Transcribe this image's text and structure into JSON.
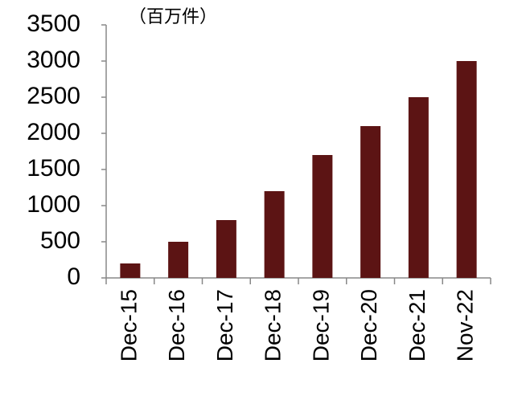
{
  "chart_data": {
    "type": "bar",
    "unit_label": "（百万件）",
    "categories": [
      "Dec-15",
      "Dec-16",
      "Dec-17",
      "Dec-18",
      "Dec-19",
      "Dec-20",
      "Dec-21",
      "Nov-22"
    ],
    "values": [
      200,
      500,
      800,
      1200,
      1700,
      2100,
      2500,
      3000
    ],
    "color": "#5c1414",
    "ylim": [
      0,
      3500
    ],
    "yticks": [
      0,
      500,
      1000,
      1500,
      2000,
      2500,
      3000,
      3500
    ],
    "grid": false
  }
}
